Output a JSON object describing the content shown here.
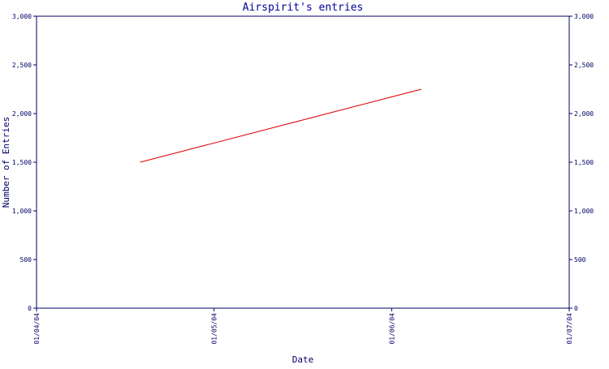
{
  "chart_data": {
    "type": "line",
    "title": "Airspirit's entries",
    "xlabel": "Date",
    "ylabel": "Number of Entries",
    "x_ticks": [
      "01/04/04",
      "01/05/04",
      "01/06/04",
      "01/07/04"
    ],
    "y_ticks": [
      "0",
      "500",
      "1,000",
      "1,500",
      "2,000",
      "2,500",
      "3,000"
    ],
    "ylim": [
      0,
      3000
    ],
    "xlim": [
      "2004-01-04",
      "2004-01-07"
    ],
    "grid": false,
    "legend": "none",
    "series": [
      {
        "x": [
          "2004-01-04 14:00",
          "2004-01-06 04:00"
        ],
        "values": [
          1500,
          2250
        ],
        "color": "#dd0000"
      }
    ],
    "axis_color": "#000066",
    "title_color": "#000099"
  }
}
